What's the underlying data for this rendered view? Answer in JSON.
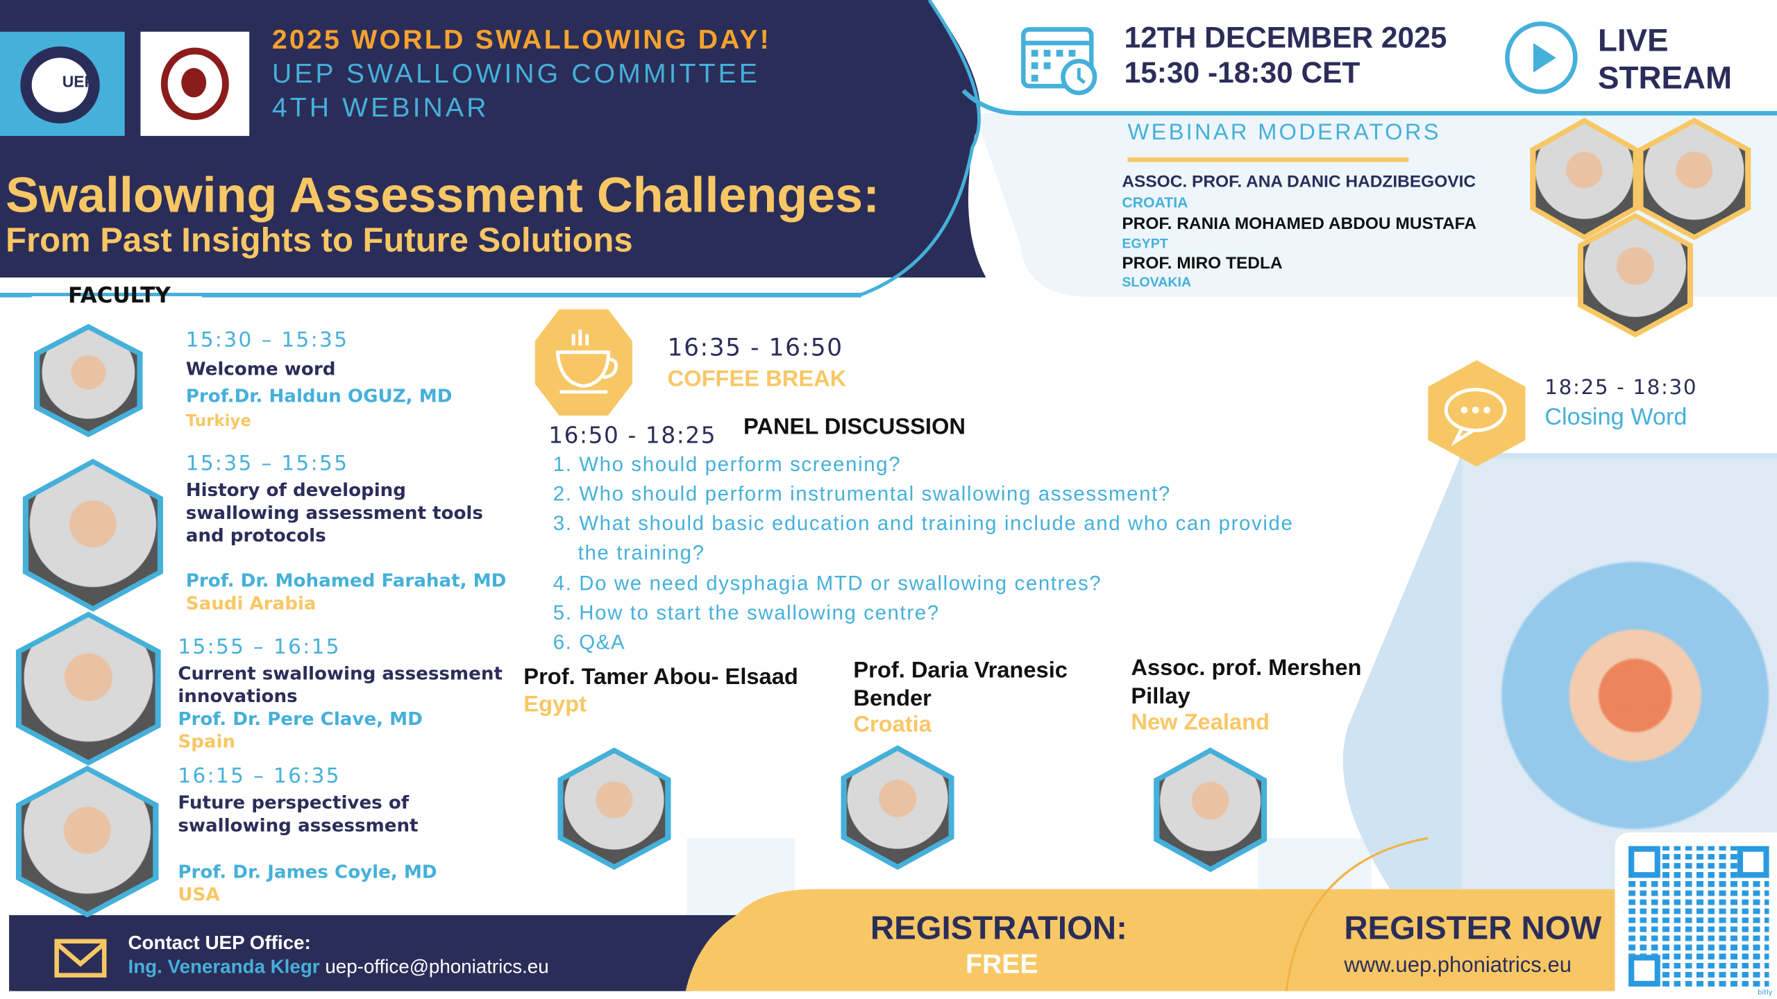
{
  "header": {
    "line1": "2025 WORLD SWALLOWING DAY!",
    "line2": "UEP SWALLOWING COMMITTEE",
    "line3": "4TH WEBINAR",
    "uep_logo_text": "UEP",
    "title": "Swallowing Assessment Challenges:",
    "subtitle": "From Past Insights to Future Solutions"
  },
  "event": {
    "date": "12TH DECEMBER 2025",
    "time": "15:30 -18:30 CET",
    "live1": "LIVE",
    "live2": "STREAM",
    "icons": [
      "calendar-clock-icon",
      "play-icon"
    ]
  },
  "moderators": {
    "heading": "WEBINAR MODERATORS",
    "items": [
      {
        "name": "ASSOC. PROF. ANA DANIC HADZIBEGOVIC",
        "country": "CROATIA"
      },
      {
        "name": "PROF. RANIA MOHAMED ABDOU MUSTAFA",
        "country": "EGYPT"
      },
      {
        "name": "PROF. MIRO TEDLA",
        "country": "SLOVAKIA"
      }
    ]
  },
  "faculty": {
    "heading": "FACULTY",
    "items": [
      {
        "time": "15:30 – 15:35",
        "topic": "Welcome word",
        "speaker": "Prof.Dr. Haldun OGUZ, MD",
        "country": "Turkiye"
      },
      {
        "time": "15:35 – 15:55",
        "topic": "History of developing swallowing assessment tools and protocols",
        "speaker": "Prof. Dr. Mohamed Farahat, MD",
        "country": "Saudi Arabia"
      },
      {
        "time": "15:55 – 16:15",
        "topic": "Current swallowing assessment innovations",
        "speaker": "Prof. Dr. Pere Clave, MD",
        "country": "Spain"
      },
      {
        "time": "16:15 – 16:35",
        "topic": "Future perspectives of swallowing assessment",
        "speaker": "Prof. Dr. James Coyle, MD",
        "country": "USA"
      }
    ]
  },
  "coffee": {
    "time": "16:35 - 16:50",
    "label": "COFFEE BREAK",
    "icon": "coffee-cup-icon"
  },
  "panel": {
    "time": "16:50 - 18:25",
    "label": "PANEL DISCUSSION",
    "questions": [
      "1. Who should perform screening?",
      "2. Who should perform instrumental swallowing assessment?",
      "3. What should basic education and training include and who can provide",
      "the training?",
      "4. Do we need dysphagia MTD or swallowing centres?",
      "5. How to start the swallowing centre?",
      "6. Q&A"
    ],
    "panelists": [
      {
        "name": "Prof. Tamer Abou- Elsaad",
        "country": "Egypt"
      },
      {
        "name": "Prof. Daria Vranesic Bender",
        "country": "Croatia"
      },
      {
        "name": "Assoc. prof. Mershen Pillay",
        "country": "New Zealand"
      }
    ]
  },
  "closing": {
    "time": "18:25 - 18:30",
    "label": "Closing Word",
    "icon": "speech-bubble-icon"
  },
  "footer": {
    "contact_label": "Contact UEP Office:",
    "contact_name": "Ing. Veneranda Klegr",
    "contact_email": "uep-office@phoniatrics.eu",
    "registration": "REGISTRATION:",
    "free": "FREE",
    "register_now": "REGISTER NOW",
    "url": "www.uep.phoniatrics.eu",
    "qr_label": "bitly"
  },
  "colors": {
    "navy": "#2b2d59",
    "blue": "#45b0da",
    "gold": "#f8c765",
    "orange": "#f6a22e"
  }
}
